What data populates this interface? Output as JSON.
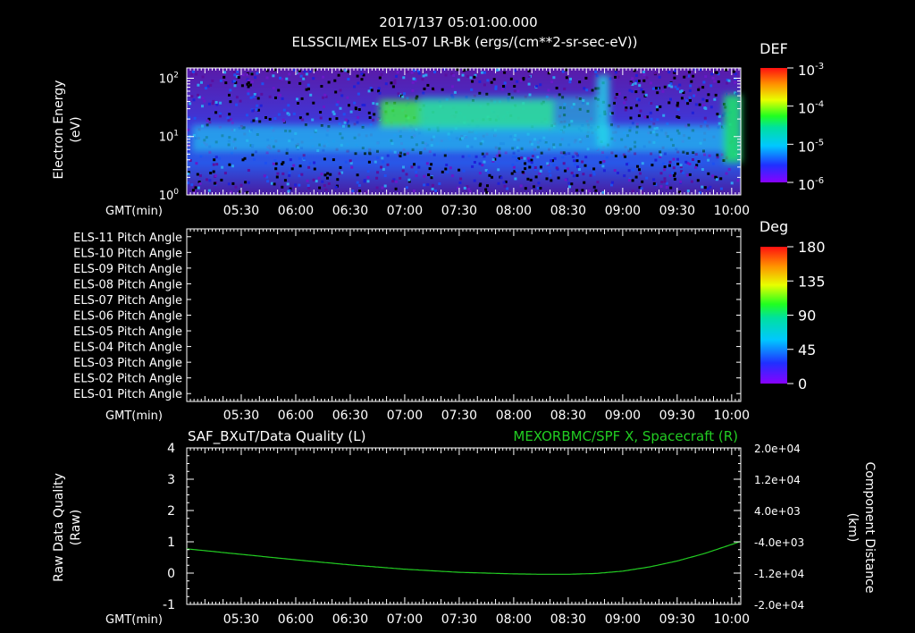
{
  "header": {
    "title": "2017/137 05:01:00.000",
    "subtitle": "ELSSCIL/MEx ELS-07 LR-Bk  (ergs/(cm**2-sr-sec-eV))"
  },
  "time_axis": {
    "label": "GMT(min)",
    "ticks": [
      "05:30",
      "06:00",
      "06:30",
      "07:00",
      "07:30",
      "08:00",
      "08:30",
      "09:00",
      "09:30",
      "10:00"
    ],
    "range_minutes": [
      300,
      605
    ]
  },
  "colors": {
    "background": "#000000",
    "axis": "#ffffff",
    "green_trace": "#22cc22"
  },
  "chart_data": [
    {
      "type": "heatmap",
      "ylabel": [
        "Electron Energy",
        "(eV)"
      ],
      "yscale": "log",
      "ylim": [
        1,
        150
      ],
      "yticks": [
        {
          "base": "10",
          "exp": "0",
          "value": 1
        },
        {
          "base": "10",
          "exp": "1",
          "value": 10
        },
        {
          "base": "10",
          "exp": "2",
          "value": 100
        }
      ],
      "colorbar": {
        "title": "DEF",
        "scale": "log",
        "ticks": [
          {
            "base": "10",
            "exp": "-3"
          },
          {
            "base": "10",
            "exp": "-4"
          },
          {
            "base": "10",
            "exp": "-5"
          },
          {
            "base": "10",
            "exp": "-6"
          }
        ]
      }
    },
    {
      "type": "heatmap",
      "row_labels": [
        "ELS-11 Pitch Angle",
        "ELS-10 Pitch Angle",
        "ELS-09 Pitch Angle",
        "ELS-08 Pitch Angle",
        "ELS-07 Pitch Angle",
        "ELS-06 Pitch Angle",
        "ELS-05 Pitch Angle",
        "ELS-04 Pitch Angle",
        "ELS-03 Pitch Angle",
        "ELS-02 Pitch Angle",
        "ELS-01 Pitch Angle"
      ],
      "colorbar": {
        "title": "Deg",
        "ticks": [
          "180",
          "135",
          "90",
          "45",
          "0"
        ]
      }
    },
    {
      "type": "line",
      "title_left": "SAF_BXuT/Data Quality (L)",
      "title_right": "MEXORBMC/SPF X, Spacecraft (R)",
      "ylabel_left": [
        "Raw Data Quality",
        "(Raw)"
      ],
      "ylabel_right": [
        "Component Distance",
        "(km)"
      ],
      "ylim_left": [
        -1,
        4
      ],
      "yticks_left": [
        "4",
        "3",
        "2",
        "1",
        "0",
        "-1"
      ],
      "ylim_right": [
        -20000,
        20000
      ],
      "yticks_right": [
        "2.0e+04",
        "1.2e+04",
        "4.0e+03",
        "-4.0e+03",
        "-1.2e+04",
        "-2.0e+04"
      ],
      "series": [
        {
          "name": "MEXORBMC/SPF X, Spacecraft (R)",
          "x_minutes": [
            300,
            330,
            360,
            390,
            420,
            450,
            480,
            495,
            510,
            525,
            540,
            555,
            570,
            585,
            605
          ],
          "y": [
            -5800,
            -7200,
            -8600,
            -9900,
            -11000,
            -11800,
            -12200,
            -12300,
            -12300,
            -12100,
            -11500,
            -10400,
            -8900,
            -7000,
            -3900
          ]
        }
      ]
    }
  ]
}
